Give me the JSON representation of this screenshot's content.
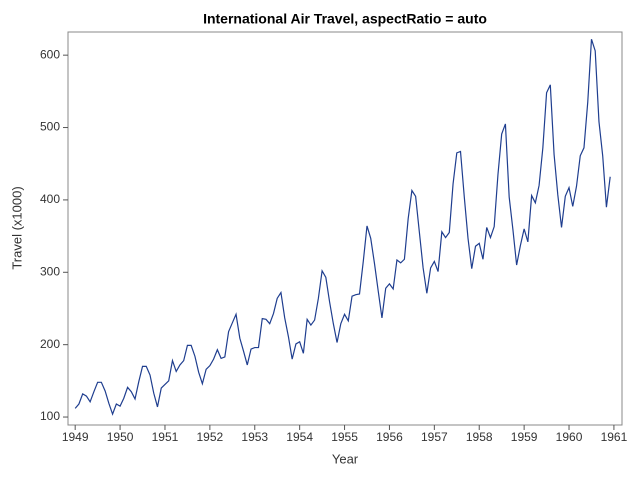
{
  "chart_data": {
    "type": "line",
    "title": "International Air Travel, aspectRatio = auto",
    "x_label": "Year",
    "y_label": "Travel (x1000)",
    "x": [
      1949,
      1949.083,
      1949.167,
      1949.25,
      1949.333,
      1949.417,
      1949.5,
      1949.583,
      1949.667,
      1949.75,
      1949.833,
      1949.917,
      1950,
      1950.083,
      1950.167,
      1950.25,
      1950.333,
      1950.417,
      1950.5,
      1950.583,
      1950.667,
      1950.75,
      1950.833,
      1950.917,
      1951,
      1951.083,
      1951.167,
      1951.25,
      1951.333,
      1951.417,
      1951.5,
      1951.583,
      1951.667,
      1951.75,
      1951.833,
      1951.917,
      1952,
      1952.083,
      1952.167,
      1952.25,
      1952.333,
      1952.417,
      1952.5,
      1952.583,
      1952.667,
      1952.75,
      1952.833,
      1952.917,
      1953,
      1953.083,
      1953.167,
      1953.25,
      1953.333,
      1953.417,
      1953.5,
      1953.583,
      1953.667,
      1953.75,
      1953.833,
      1953.917,
      1954,
      1954.083,
      1954.167,
      1954.25,
      1954.333,
      1954.417,
      1954.5,
      1954.583,
      1954.667,
      1954.75,
      1954.833,
      1954.917,
      1955,
      1955.083,
      1955.167,
      1955.25,
      1955.333,
      1955.417,
      1955.5,
      1955.583,
      1955.667,
      1955.75,
      1955.833,
      1955.917,
      1956,
      1956.083,
      1956.167,
      1956.25,
      1956.333,
      1956.417,
      1956.5,
      1956.583,
      1956.667,
      1956.75,
      1956.833,
      1956.917,
      1957,
      1957.083,
      1957.167,
      1957.25,
      1957.333,
      1957.417,
      1957.5,
      1957.583,
      1957.667,
      1957.75,
      1957.833,
      1957.917,
      1958,
      1958.083,
      1958.167,
      1958.25,
      1958.333,
      1958.417,
      1958.5,
      1958.583,
      1958.667,
      1958.75,
      1958.833,
      1958.917,
      1959,
      1959.083,
      1959.167,
      1959.25,
      1959.333,
      1959.417,
      1959.5,
      1959.583,
      1959.667,
      1959.75,
      1959.833,
      1959.917,
      1960,
      1960.083,
      1960.167,
      1960.25,
      1960.333,
      1960.417,
      1960.5,
      1960.583,
      1960.667,
      1960.75,
      1960.833,
      1960.917
    ],
    "series": [
      {
        "name": "Travel",
        "color": "#1f3e8f",
        "values": [
          112,
          118,
          132,
          129,
          121,
          135,
          148,
          148,
          136,
          119,
          104,
          118,
          115,
          126,
          141,
          135,
          125,
          149,
          170,
          170,
          158,
          133,
          114,
          140,
          145,
          150,
          178,
          163,
          172,
          178,
          199,
          199,
          184,
          162,
          146,
          166,
          171,
          180,
          193,
          181,
          183,
          218,
          230,
          242,
          209,
          191,
          172,
          194,
          196,
          196,
          236,
          235,
          229,
          243,
          264,
          272,
          237,
          211,
          180,
          201,
          204,
          188,
          235,
          227,
          234,
          264,
          302,
          293,
          259,
          229,
          203,
          229,
          242,
          233,
          267,
          269,
          270,
          315,
          364,
          347,
          312,
          274,
          237,
          278,
          284,
          277,
          317,
          313,
          318,
          374,
          413,
          405,
          355,
          306,
          271,
          306,
          315,
          301,
          356,
          348,
          355,
          422,
          465,
          467,
          404,
          347,
          305,
          336,
          340,
          318,
          362,
          348,
          363,
          435,
          491,
          505,
          404,
          359,
          310,
          337,
          360,
          342,
          406,
          396,
          420,
          472,
          548,
          559,
          463,
          407,
          362,
          405,
          417,
          391,
          419,
          461,
          472,
          535,
          622,
          606,
          508,
          461,
          390,
          432
        ]
      }
    ],
    "xlim": [
      1948.84,
      1961.18
    ],
    "xticks": [
      1949,
      1950,
      1951,
      1952,
      1953,
      1954,
      1955,
      1956,
      1957,
      1958,
      1959,
      1960,
      1961
    ],
    "ylim": [
      89,
      632
    ],
    "yticks": [
      100,
      200,
      300,
      400,
      500,
      600
    ]
  }
}
